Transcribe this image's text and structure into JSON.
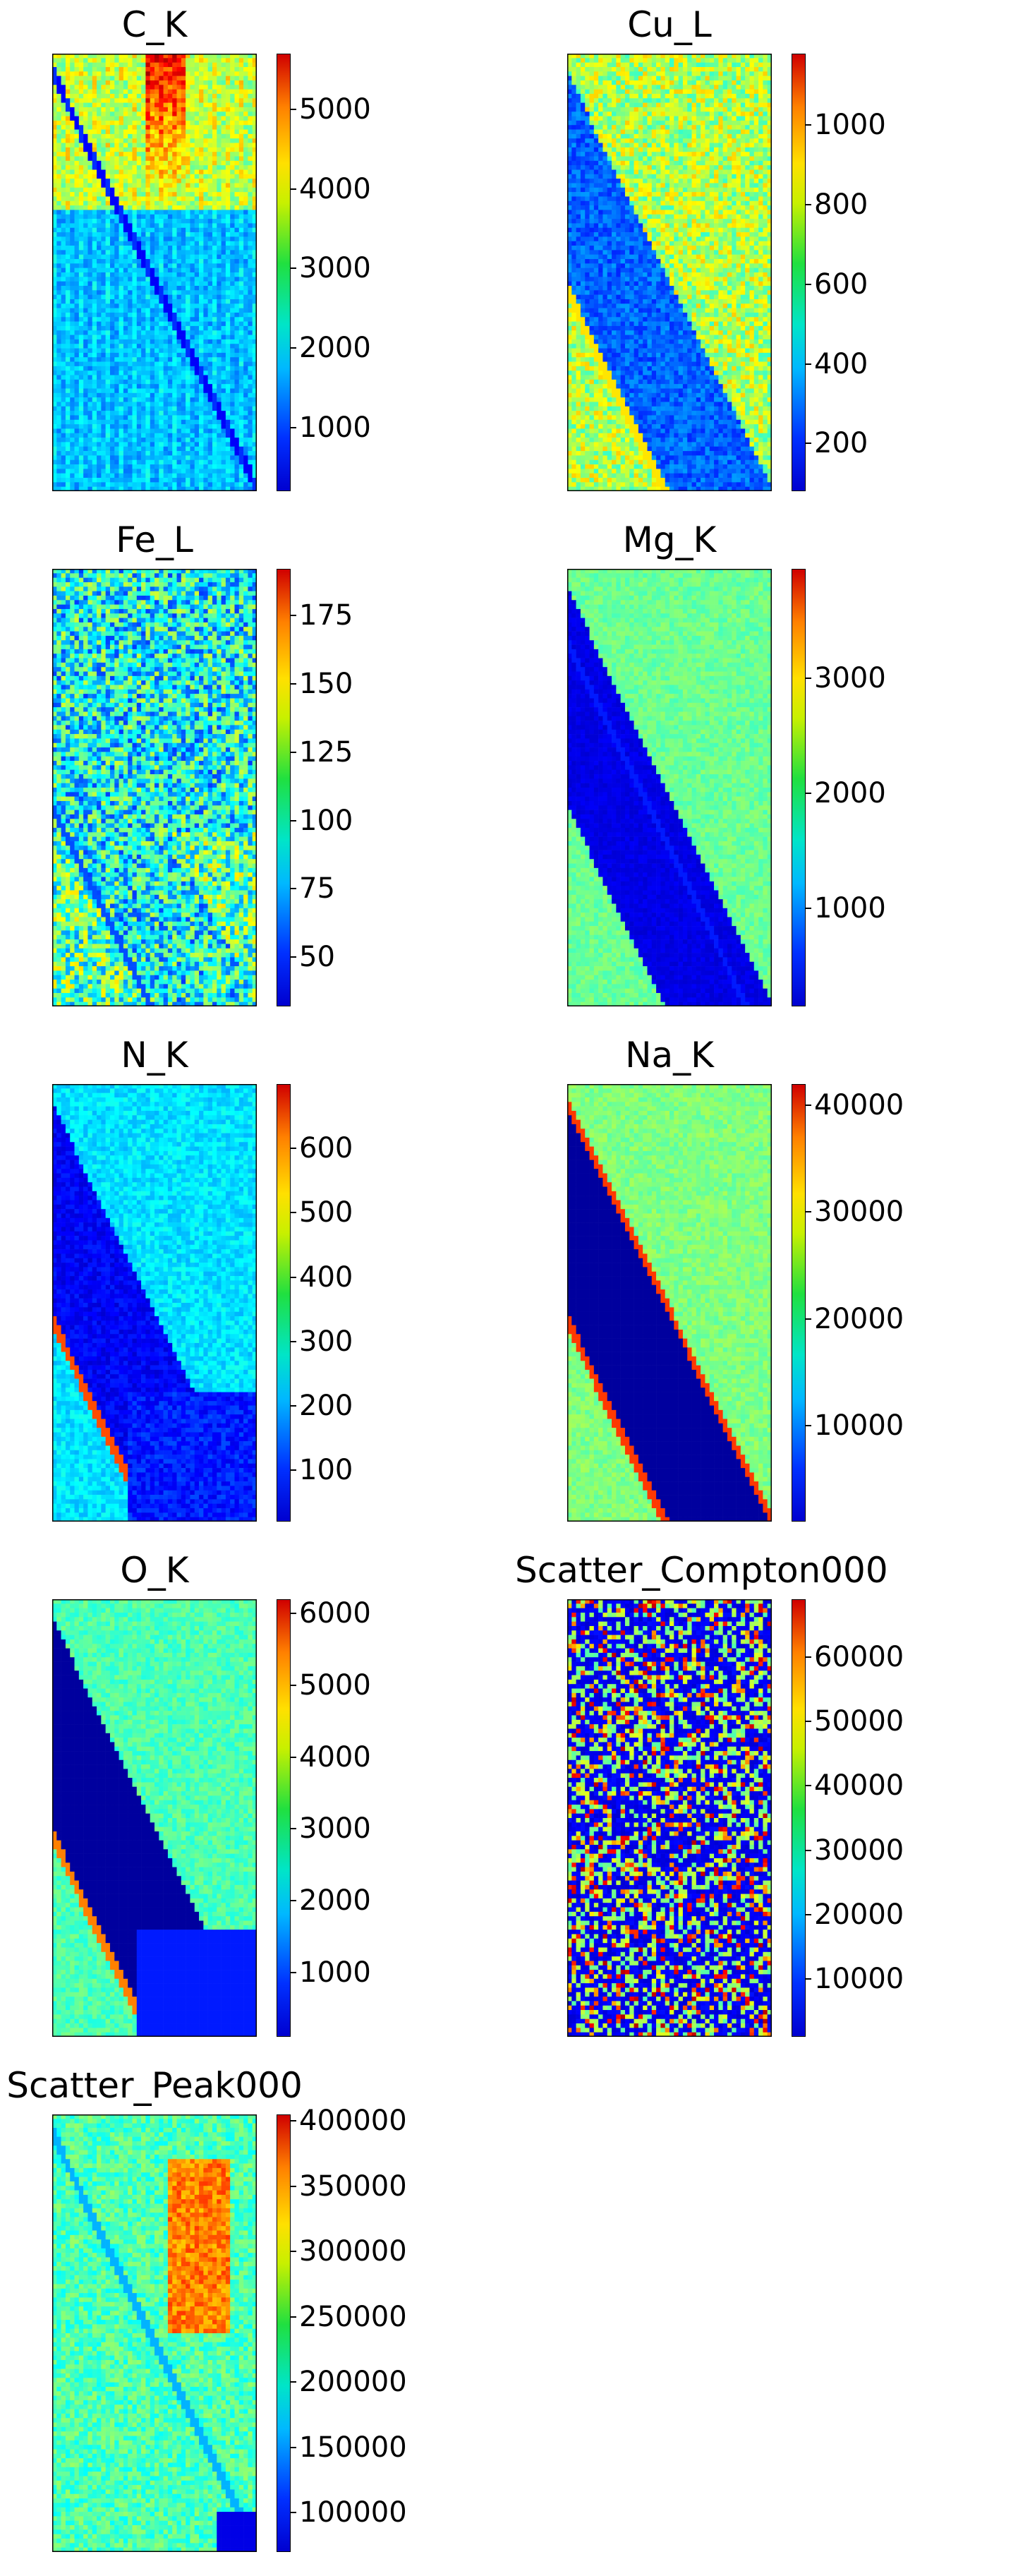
{
  "chart_data": [
    {
      "type": "heatmap",
      "title": "C_K",
      "colorbar": {
        "ticks": [
          "1000",
          "2000",
          "3000",
          "4000",
          "5000"
        ],
        "vmin": 200,
        "vmax": 5700
      },
      "colormap": "jet",
      "pattern": "ck"
    },
    {
      "type": "heatmap",
      "title": "Cu_L",
      "colorbar": {
        "ticks": [
          "200",
          "400",
          "600",
          "800",
          "1000"
        ],
        "vmin": 80,
        "vmax": 1180
      },
      "colormap": "jet",
      "pattern": "cu"
    },
    {
      "type": "heatmap",
      "title": "Fe_L",
      "colorbar": {
        "ticks": [
          "50",
          "75",
          "100",
          "125",
          "150",
          "175"
        ],
        "vmin": 32,
        "vmax": 192
      },
      "colormap": "jet",
      "pattern": "fe"
    },
    {
      "type": "heatmap",
      "title": "Mg_K",
      "colorbar": {
        "ticks": [
          "1000",
          "2000",
          "3000"
        ],
        "vmin": 150,
        "vmax": 3950
      },
      "colormap": "jet",
      "pattern": "mg"
    },
    {
      "type": "heatmap",
      "title": "N_K",
      "colorbar": {
        "ticks": [
          "100",
          "200",
          "300",
          "400",
          "500",
          "600"
        ],
        "vmin": 20,
        "vmax": 700
      },
      "colormap": "jet",
      "pattern": "nk"
    },
    {
      "type": "heatmap",
      "title": "Na_K",
      "colorbar": {
        "ticks": [
          "10000",
          "20000",
          "30000",
          "40000"
        ],
        "vmin": 1000,
        "vmax": 42000
      },
      "colormap": "jet",
      "pattern": "na"
    },
    {
      "type": "heatmap",
      "title": "O_K",
      "colorbar": {
        "ticks": [
          "1000",
          "2000",
          "3000",
          "4000",
          "5000",
          "6000"
        ],
        "vmin": 100,
        "vmax": 6200
      },
      "colormap": "jet",
      "pattern": "ok"
    },
    {
      "type": "heatmap",
      "title": "Scatter_Compton000",
      "colorbar": {
        "ticks": [
          "10000",
          "20000",
          "30000",
          "40000",
          "50000",
          "60000"
        ],
        "vmin": 1000,
        "vmax": 69000
      },
      "colormap": "jet",
      "pattern": "sc"
    },
    {
      "type": "heatmap",
      "title": "Scatter_Peak000",
      "colorbar": {
        "ticks": [
          "100000",
          "150000",
          "200000",
          "250000",
          "300000",
          "350000",
          "400000"
        ],
        "vmin": 70000,
        "vmax": 405000
      },
      "colormap": "jet",
      "pattern": "sp"
    }
  ]
}
